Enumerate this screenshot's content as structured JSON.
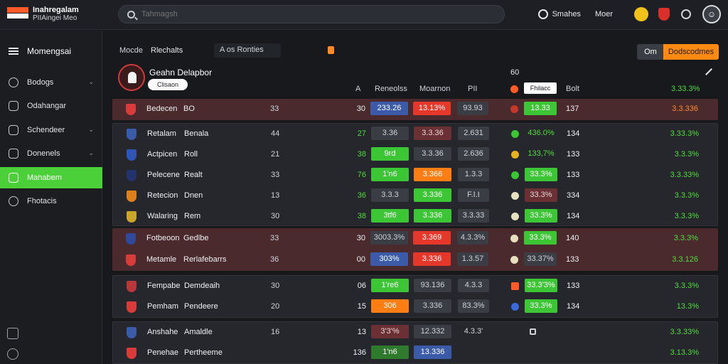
{
  "brand": {
    "title": "Inahregalam",
    "subtitle": "PIIAingei Meo"
  },
  "search": {
    "placeholder": "Tahmagsh"
  },
  "topbar": {
    "link1": "Smahes",
    "link2": "Moer"
  },
  "sidebar": {
    "title": "Momengsai",
    "items": [
      {
        "label": "Bodogs",
        "chevron": true
      },
      {
        "label": "Odahangar",
        "chevron": false
      },
      {
        "label": "Schendeer",
        "chevron": true
      },
      {
        "label": "Donenels",
        "chevron": true
      },
      {
        "label": "Mahabem",
        "chevron": false,
        "active": true
      },
      {
        "label": "Fhotacis",
        "chevron": false
      }
    ]
  },
  "filters": {
    "label": "Mocde",
    "select1": "Rlechalts",
    "select2": "A os Ronties",
    "btn_on": "Om",
    "btn_orange": "Dodscodmes"
  },
  "header": {
    "team": "Geahn Delapbor",
    "pill": "Clisaon",
    "top_value": "60",
    "cols": [
      "A",
      "Reneolss",
      "Moarnon",
      "PII"
    ],
    "white_label": "Fhilacc",
    "last_col": "Bolt",
    "right_value": "3.33.3%"
  },
  "groups": [
    {
      "style": "red",
      "rows": [
        {
          "crest": "#d93a3a",
          "name": "Bedecen",
          "name2": "BO",
          "c1": "33",
          "c2": "30",
          "a": "233.26",
          "a_style": "blue",
          "b": "13.13%",
          "b_style": "red",
          "c": "93.93",
          "dot": "#c0392b",
          "d": "13.33",
          "d_style": "green",
          "e": "137",
          "f": "3.3.336",
          "f_style": "corange"
        }
      ]
    },
    {
      "style": "dark",
      "rows": [
        {
          "crest": "#3b5aa8",
          "name": "Retalam",
          "name2": "Benala",
          "c1": "44",
          "c2": "27",
          "c2_style": "cgreen",
          "a": "3.36",
          "a_style": "dark",
          "b": "3.3.36",
          "b_style": "darkred",
          "c": "2.631",
          "dot": "#3cc534",
          "d": "436.0%",
          "d_style": "none",
          "e": "134",
          "f": "3.33.3%",
          "f_style": "cgreen"
        },
        {
          "crest": "#2f55b5",
          "name": "Actpicen",
          "name2": "Roll",
          "c1": "21",
          "c2": "38",
          "c2_style": "cgreen",
          "a": "9rd",
          "a_style": "green",
          "b": "3.3.36",
          "b_style": "dark",
          "c": "2.636",
          "dot": "#e6b320",
          "d": "133,7%",
          "d_style": "none",
          "e": "133",
          "f": "3.3.3%",
          "f_style": "cgreen"
        },
        {
          "crest": "#23336b",
          "name": "Pelecene",
          "name2": "Realt",
          "c1": "33",
          "c2": "76",
          "c2_style": "cgreen",
          "a": "1'n6",
          "a_style": "green",
          "b": "3.366",
          "b_style": "orange",
          "c": "1.3.3",
          "dot": "#3cc534",
          "d": "33.3%",
          "d_style": "green",
          "e": "133",
          "f": "3.3.33%",
          "f_style": "cgreen"
        },
        {
          "crest": "#e0801a",
          "name": "Retecion",
          "name2": "Dnen",
          "c1": "13",
          "c2": "36",
          "c2_style": "cgreen",
          "a": "3.3.3",
          "a_style": "dark",
          "b": "3.336",
          "b_style": "green",
          "c": "F.I.I",
          "dot": "#e6e0c0",
          "d": "33.3%",
          "d_style": "darkred",
          "e": "334",
          "f": "3.3.3%",
          "f_style": "cgreen"
        },
        {
          "crest": "#c9a52a",
          "name": "Walaring",
          "name2": "Rem",
          "c1": "30",
          "c2": "38",
          "c2_style": "cgreen",
          "a": "3tf6",
          "a_style": "green",
          "b": "3.336",
          "b_style": "green",
          "c": "3.3.33",
          "dot": "#e6e0c0",
          "d": "33.3%",
          "d_style": "green",
          "e": "134",
          "f": "3.3.3%",
          "f_style": "cgreen"
        }
      ]
    },
    {
      "style": "red",
      "rows": [
        {
          "crest": "#2f4a9a",
          "name": "Fotbeoon",
          "name2": "Gedlbe",
          "c1": "33",
          "c2": "30",
          "c2_style": "cwhite",
          "a": "3003.3%",
          "a_style": "dark",
          "b": "3.369",
          "b_style": "red",
          "c": "4.3.3%",
          "dot": "#e6e0c0",
          "d": "33.3%",
          "d_style": "green",
          "e": "140",
          "f": "3.3.3%",
          "f_style": "cgreen"
        },
        {
          "crest": "#d93a3a",
          "name": "Metamle",
          "name2": "Rerlafebarrs",
          "c1": "36",
          "c2": "00",
          "c2_style": "cwhite",
          "a": "303%",
          "a_style": "blue",
          "b": "3.336",
          "b_style": "red",
          "c": "1.3.57",
          "dot": "#e6e0c0",
          "d": "33.37%",
          "d_style": "none",
          "e": "133",
          "f": "3.3.126",
          "f_style": "cgreen"
        }
      ]
    },
    {
      "style": "dark",
      "rows": [
        {
          "crest": "#b8383a",
          "name": "Fempabe",
          "name2": "Demdeaih",
          "c1": "30",
          "c2": "06",
          "c2_style": "cwhite",
          "a": "1're6",
          "a_style": "green",
          "b": "93.136",
          "b_style": "none",
          "c": "4.3.3",
          "dot": "#ff5a2a",
          "d": "33.3'3%",
          "d_style": "green",
          "e": "133",
          "f": "3.3.3%",
          "f_style": "cgreen"
        },
        {
          "crest": "#d93a3a",
          "name": "Pemham",
          "name2": "Pendeere",
          "c1": "20",
          "c2": "15",
          "c2_style": "cwhite",
          "a": "306",
          "a_style": "orange",
          "b": "3.336",
          "b_style": "none",
          "c": "83.3%",
          "dot": "#3b6ad8",
          "d": "33.3%",
          "d_style": "green",
          "e": "134",
          "f": "13.3%",
          "f_style": "cgreen"
        }
      ]
    },
    {
      "style": "dark",
      "rows": [
        {
          "crest": "#3b5aa8",
          "name": "Anshahe",
          "name2": "Amaldle",
          "c1": "16",
          "c2": "13",
          "c2_style": "cwhite",
          "a": "3'3'%",
          "a_style": "darkred",
          "b": "12.332",
          "b_style": "dark",
          "c": "4.3.3'",
          "dot": "#17191d",
          "d": "",
          "d_style": "hidden",
          "e": "",
          "f": "3.3.33%",
          "f_style": "cgreen"
        },
        {
          "crest": "#d93a3a",
          "name": "Penehae",
          "name2": "Pertheeme",
          "c1": "",
          "c2": "136",
          "c2_style": "cwhite",
          "a": "1'n6",
          "a_style": "green",
          "b": "13.336",
          "b_style": "blue",
          "c": "",
          "dot": "",
          "d": "",
          "d_style": "hidden",
          "e": "",
          "f": "3.13.3%",
          "f_style": "cgreen"
        }
      ]
    }
  ]
}
